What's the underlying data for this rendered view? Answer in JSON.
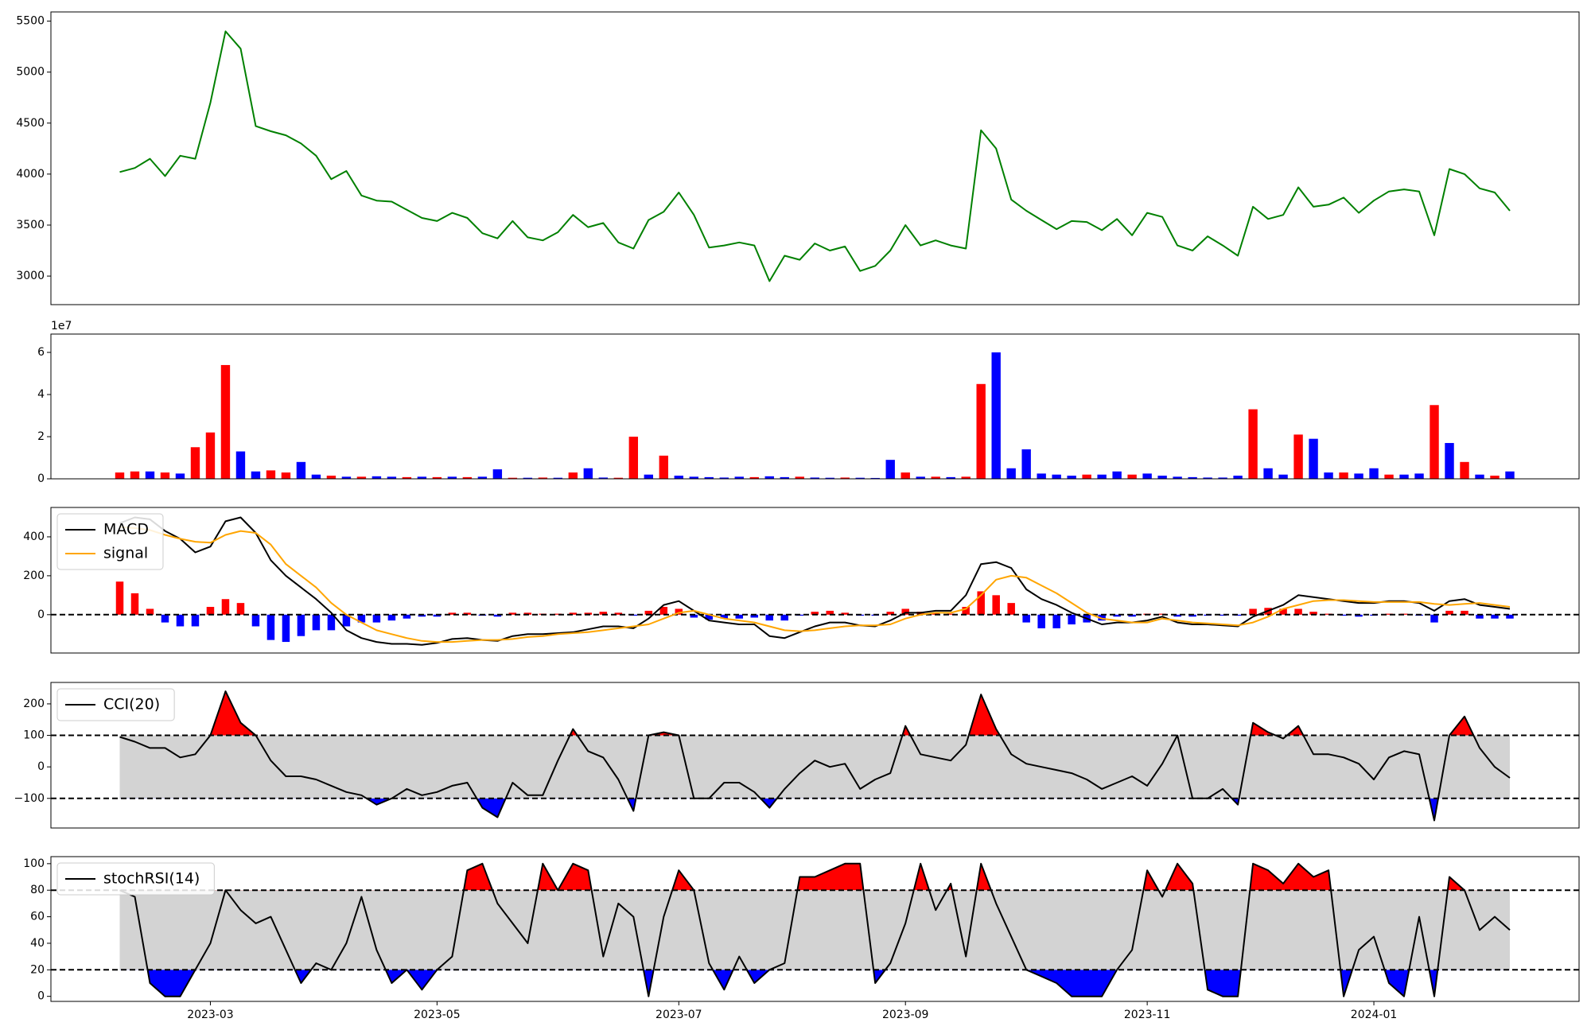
{
  "chart_data": [
    {
      "type": "line",
      "series": [
        {
          "color": "green",
          "values": [
            4020,
            4060,
            4150,
            3980,
            4180,
            4150,
            4700,
            5400,
            5230,
            4470,
            4420,
            4380,
            4300,
            4180,
            3950,
            4030,
            3790,
            3740,
            3730,
            3650,
            3570,
            3540,
            3620,
            3570,
            3420,
            3370,
            3540,
            3380,
            3350,
            3430,
            3600,
            3480,
            3520,
            3330,
            3270,
            3550,
            3630,
            3820,
            3600,
            3280,
            3300,
            3330,
            3300,
            2950,
            3200,
            3160,
            3320,
            3250,
            3290,
            3050,
            3100,
            3250,
            3500,
            3300,
            3350,
            3300,
            3270,
            4430,
            4250,
            3750,
            3640,
            3550,
            3460,
            3540,
            3530,
            3450,
            3560,
            3400,
            3620,
            3580,
            3300,
            3250,
            3390,
            3300,
            3200,
            3680,
            3560,
            3600,
            3870,
            3680,
            3700,
            3770,
            3620,
            3740,
            3830,
            3850,
            3830,
            3400,
            4050,
            4000,
            3860,
            3820,
            3640
          ]
        }
      ],
      "ylim": [
        2720,
        5590
      ],
      "yticks": [
        3000,
        3500,
        4000,
        4500,
        5000,
        5500
      ]
    },
    {
      "type": "bar",
      "offset_label": "1e7",
      "series": [
        {
          "color": "red",
          "values": [
            0.3,
            0.35,
            null,
            0.3,
            null,
            1.5,
            2.2,
            5.4,
            null,
            null,
            0.4,
            0.3,
            null,
            null,
            0.15,
            null,
            0.1,
            null,
            null,
            0.08,
            null,
            0.08,
            null,
            0.08,
            null,
            null,
            0.05,
            null,
            0.06,
            null,
            0.3,
            null,
            null,
            0.05,
            2.0,
            null,
            1.1,
            null,
            null,
            null,
            null,
            null,
            0.08,
            null,
            null,
            0.1,
            null,
            null,
            0.06,
            null,
            null,
            null,
            0.3,
            null,
            0.1,
            null,
            0.1,
            4.5,
            null,
            null,
            null,
            null,
            null,
            null,
            0.2,
            null,
            null,
            0.2,
            null,
            null,
            null,
            null,
            null,
            null,
            null,
            3.3,
            null,
            null,
            2.1,
            null,
            null,
            0.3,
            null,
            null,
            0.2,
            null,
            null,
            3.5,
            null,
            0.8,
            null,
            0.15,
            null
          ]
        },
        {
          "color": "blue",
          "values": [
            null,
            null,
            0.35,
            null,
            0.25,
            null,
            null,
            null,
            1.3,
            0.35,
            null,
            null,
            0.8,
            0.2,
            null,
            0.1,
            null,
            0.12,
            0.1,
            null,
            0.1,
            null,
            0.1,
            null,
            0.1,
            0.45,
            null,
            0.05,
            null,
            0.05,
            null,
            0.5,
            0.06,
            null,
            null,
            0.2,
            null,
            0.15,
            0.1,
            0.08,
            0.06,
            0.1,
            null,
            0.12,
            0.08,
            null,
            0.06,
            0.05,
            null,
            0.05,
            0.04,
            0.9,
            null,
            0.1,
            null,
            0.08,
            null,
            null,
            6.0,
            0.5,
            1.4,
            0.25,
            0.2,
            0.15,
            null,
            0.2,
            0.35,
            null,
            0.25,
            0.15,
            0.1,
            0.08,
            0.06,
            0.06,
            0.15,
            null,
            0.5,
            0.2,
            null,
            1.9,
            0.3,
            null,
            0.25,
            0.5,
            null,
            0.2,
            0.25,
            null,
            1.7,
            null,
            0.2,
            null,
            0.35
          ]
        }
      ],
      "ylim": [
        0,
        6.87
      ],
      "yticks": [
        0,
        2,
        4,
        6
      ]
    },
    {
      "type": "macd",
      "legend": "upper left",
      "series": [
        {
          "name": "MACD",
          "color": "black",
          "values": [
            470,
            500,
            490,
            430,
            390,
            320,
            350,
            480,
            500,
            420,
            280,
            200,
            140,
            80,
            10,
            -80,
            -120,
            -140,
            -150,
            -150,
            -155,
            -145,
            -125,
            -120,
            -130,
            -135,
            -110,
            -100,
            -100,
            -95,
            -90,
            -75,
            -60,
            -60,
            -70,
            -20,
            50,
            70,
            20,
            -30,
            -40,
            -50,
            -50,
            -110,
            -120,
            -90,
            -60,
            -40,
            -40,
            -55,
            -60,
            -30,
            10,
            10,
            20,
            20,
            100,
            260,
            270,
            240,
            130,
            80,
            50,
            10,
            -20,
            -50,
            -40,
            -40,
            -30,
            -10,
            -40,
            -50,
            -50,
            -55,
            -60,
            -10,
            20,
            50,
            100,
            90,
            80,
            70,
            60,
            60,
            70,
            70,
            60,
            20,
            70,
            80,
            50,
            40,
            30
          ]
        },
        {
          "name": "signal",
          "color": "orange",
          "values": [
            450,
            445,
            435,
            410,
            390,
            375,
            370,
            410,
            430,
            420,
            360,
            260,
            200,
            140,
            60,
            0,
            -40,
            -80,
            -100,
            -120,
            -135,
            -140,
            -140,
            -135,
            -130,
            -130,
            -125,
            -115,
            -110,
            -100,
            -95,
            -90,
            -80,
            -70,
            -60,
            -50,
            -20,
            10,
            20,
            0,
            -20,
            -30,
            -40,
            -60,
            -80,
            -85,
            -80,
            -70,
            -60,
            -55,
            -55,
            -50,
            -20,
            0,
            10,
            10,
            30,
            100,
            180,
            200,
            190,
            150,
            110,
            60,
            10,
            -20,
            -30,
            -40,
            -40,
            -20,
            -30,
            -40,
            -45,
            -50,
            -55,
            -40,
            -10,
            30,
            50,
            70,
            75,
            75,
            70,
            65,
            65,
            65,
            65,
            55,
            50,
            55,
            60,
            50,
            40
          ]
        }
      ],
      "histogram": {
        "pos_color": "red",
        "neg_color": "blue",
        "values": [
          170,
          110,
          30,
          -40,
          -60,
          -60,
          40,
          80,
          60,
          -60,
          -130,
          -140,
          -110,
          -80,
          -80,
          -60,
          -40,
          -40,
          -30,
          -20,
          -10,
          -10,
          10,
          10,
          -5,
          -10,
          10,
          10,
          5,
          5,
          10,
          10,
          15,
          10,
          -5,
          20,
          40,
          30,
          -15,
          -25,
          -20,
          -20,
          -15,
          -30,
          -30,
          -5,
          15,
          20,
          10,
          -5,
          -5,
          15,
          30,
          15,
          10,
          5,
          40,
          120,
          100,
          60,
          -40,
          -70,
          -70,
          -50,
          -40,
          -30,
          -10,
          -10,
          5,
          5,
          -10,
          -10,
          -5,
          -5,
          -5,
          30,
          35,
          30,
          30,
          15,
          5,
          -5,
          -10,
          -5,
          5,
          5,
          -5,
          -40,
          20,
          20,
          -20,
          -20,
          -20
        ]
      },
      "hlines": [
        0
      ],
      "ylim": [
        -197,
        551
      ],
      "yticks": [
        0,
        200,
        400
      ]
    },
    {
      "type": "oscillator",
      "legend": "upper left",
      "series": [
        {
          "name": "CCI(20)",
          "color": "black",
          "values": [
            95,
            80,
            60,
            60,
            30,
            40,
            100,
            240,
            140,
            100,
            20,
            -30,
            -30,
            -40,
            -60,
            -80,
            -90,
            -120,
            -100,
            -70,
            -90,
            -80,
            -60,
            -50,
            -130,
            -160,
            -50,
            -90,
            -90,
            20,
            120,
            50,
            30,
            -40,
            -140,
            100,
            110,
            100,
            -100,
            -100,
            -50,
            -50,
            -80,
            -130,
            -70,
            -20,
            20,
            0,
            10,
            -70,
            -40,
            -20,
            130,
            40,
            30,
            20,
            70,
            230,
            120,
            40,
            10,
            0,
            -10,
            -20,
            -40,
            -70,
            -50,
            -30,
            -60,
            10,
            100,
            -100,
            -100,
            -70,
            -120,
            140,
            110,
            90,
            130,
            40,
            40,
            30,
            10,
            -40,
            30,
            50,
            40,
            -170,
            100,
            160,
            60,
            0,
            -35
          ]
        }
      ],
      "hlines": [
        100,
        -100
      ],
      "band_color": "lightgray",
      "above_color": "red",
      "below_color": "blue",
      "ylim": [
        -194,
        268
      ],
      "yticks": [
        {
          "value": -100,
          "label": "−100"
        },
        0,
        100,
        200
      ]
    },
    {
      "type": "oscillator",
      "legend": "upper left",
      "categories": [
        null,
        null,
        null,
        null,
        null,
        null,
        "2023-03",
        null,
        null,
        null,
        null,
        null,
        null,
        null,
        null,
        null,
        null,
        null,
        null,
        null,
        null,
        "2023-05",
        null,
        null,
        null,
        null,
        null,
        null,
        null,
        null,
        null,
        null,
        null,
        null,
        null,
        null,
        null,
        "2023-07",
        null,
        null,
        null,
        null,
        null,
        null,
        null,
        null,
        null,
        null,
        null,
        null,
        null,
        null,
        "2023-09",
        null,
        null,
        null,
        null,
        null,
        null,
        null,
        null,
        null,
        null,
        null,
        null,
        null,
        null,
        null,
        "2023-11",
        null,
        null,
        null,
        null,
        null,
        null,
        null,
        null,
        null,
        null,
        null,
        null,
        null,
        null,
        "2024-01",
        null,
        null,
        null,
        null,
        null,
        null,
        null,
        null,
        null
      ],
      "series": [
        {
          "name": "stochRSI(14)",
          "color": "black",
          "values": [
            80,
            75,
            10,
            0,
            0,
            20,
            40,
            80,
            65,
            55,
            60,
            35,
            10,
            25,
            20,
            40,
            75,
            35,
            10,
            20,
            5,
            20,
            30,
            95,
            100,
            70,
            55,
            40,
            100,
            80,
            100,
            95,
            30,
            70,
            60,
            0,
            60,
            95,
            80,
            25,
            5,
            30,
            10,
            20,
            25,
            90,
            90,
            95,
            100,
            100,
            10,
            25,
            55,
            100,
            65,
            85,
            30,
            100,
            70,
            45,
            20,
            15,
            10,
            0,
            0,
            0,
            20,
            35,
            95,
            75,
            100,
            85,
            5,
            0,
            0,
            100,
            95,
            85,
            100,
            90,
            95,
            0,
            35,
            45,
            10,
            0,
            60,
            0,
            90,
            80,
            50,
            60,
            50
          ]
        }
      ],
      "hlines": [
        80,
        20
      ],
      "band_color": "lightgray",
      "above_color": "red",
      "below_color": "blue",
      "ylim": [
        -3.8,
        105.3
      ],
      "yticks": [
        0,
        20,
        40,
        60,
        80,
        100
      ]
    }
  ]
}
